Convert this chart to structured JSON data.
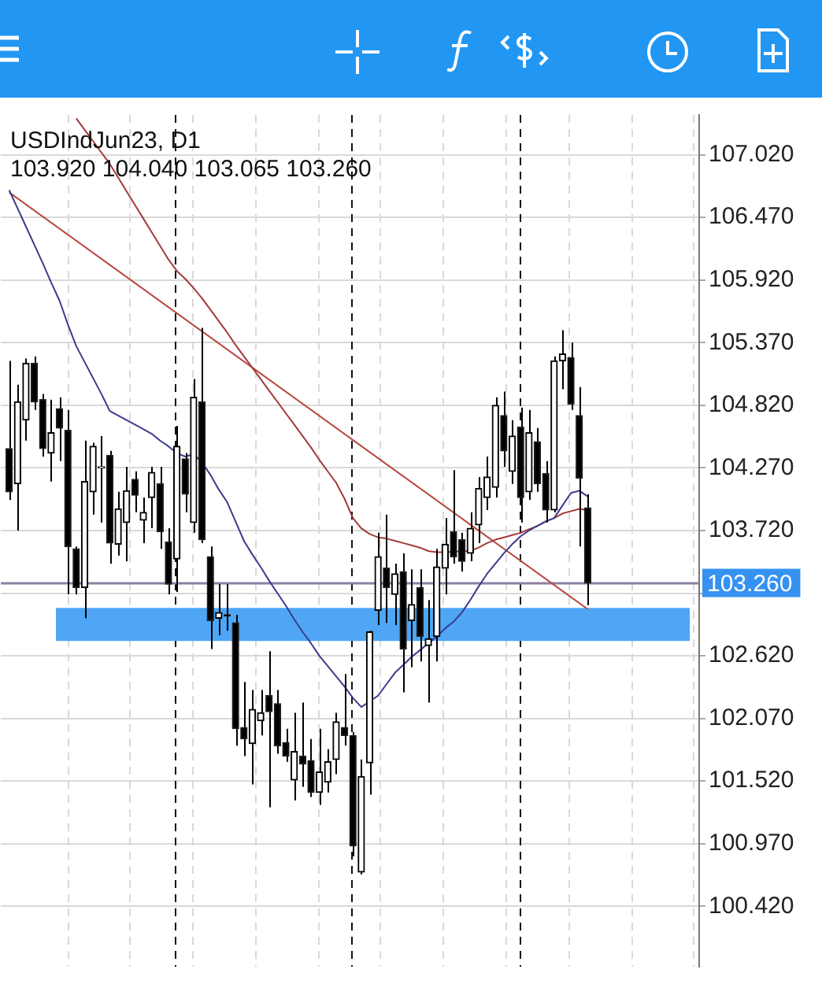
{
  "chart_data": {
    "type": "candlestick",
    "title": "USDIndJun23, D1",
    "subtitle": "103.920 104.040 103.065 103.260",
    "categories": [
      null,
      null,
      null,
      null,
      null,
      null,
      null,
      null,
      null,
      null,
      null,
      null,
      null,
      null,
      null,
      null,
      null,
      null,
      null,
      null,
      null,
      null,
      null,
      null,
      null,
      null,
      null,
      null,
      null,
      null,
      null,
      null,
      null,
      null,
      null,
      null,
      null,
      null,
      null,
      null,
      null,
      null,
      null,
      null,
      null,
      null,
      null,
      null,
      null,
      null,
      null,
      null,
      null,
      null,
      null,
      null,
      null,
      null,
      null,
      null,
      null,
      null,
      null,
      null,
      null,
      null,
      null,
      null,
      null,
      null
    ],
    "ohlc": [
      [
        104.44,
        105.21,
        103.99,
        104.06
      ],
      [
        104.13,
        105.0,
        103.72,
        104.85
      ],
      [
        104.69,
        105.23,
        104.51,
        105.19
      ],
      [
        105.19,
        105.25,
        104.78,
        104.85
      ],
      [
        104.87,
        104.92,
        104.37,
        104.44
      ],
      [
        104.4,
        104.87,
        104.15,
        104.58
      ],
      [
        104.79,
        104.89,
        104.33,
        104.62
      ],
      [
        104.6,
        104.78,
        103.16,
        103.58
      ],
      [
        103.56,
        103.58,
        103.16,
        103.22
      ],
      [
        103.22,
        104.51,
        102.95,
        104.15
      ],
      [
        104.06,
        104.49,
        103.86,
        104.46
      ],
      [
        104.27,
        104.55,
        103.79,
        104.28
      ],
      [
        104.38,
        104.42,
        103.43,
        103.61
      ],
      [
        103.6,
        104.06,
        103.5,
        103.91
      ],
      [
        103.79,
        104.28,
        103.45,
        104.07
      ],
      [
        104.17,
        104.24,
        103.88,
        104.03
      ],
      [
        103.81,
        104.01,
        103.61,
        103.88
      ],
      [
        104.01,
        104.28,
        103.74,
        104.23
      ],
      [
        104.13,
        104.28,
        103.56,
        103.71
      ],
      [
        103.62,
        103.74,
        103.16,
        103.25
      ],
      [
        103.47,
        104.64,
        103.18,
        104.46
      ],
      [
        104.35,
        104.4,
        103.88,
        104.04
      ],
      [
        103.79,
        105.05,
        103.7,
        104.89
      ],
      [
        104.85,
        105.5,
        103.61,
        103.64
      ],
      [
        103.49,
        103.58,
        102.68,
        102.93
      ],
      [
        102.95,
        103.25,
        102.8,
        103.0
      ],
      [
        102.98,
        103.25,
        102.84,
        102.97
      ],
      [
        102.91,
        102.98,
        101.83,
        101.98
      ],
      [
        101.99,
        102.39,
        101.74,
        101.89
      ],
      [
        101.85,
        102.32,
        101.49,
        102.15
      ],
      [
        102.05,
        102.32,
        101.92,
        102.12
      ],
      [
        102.27,
        102.66,
        101.29,
        102.13
      ],
      [
        102.2,
        102.32,
        101.76,
        101.83
      ],
      [
        101.86,
        101.98,
        101.69,
        101.74
      ],
      [
        101.53,
        102.12,
        101.35,
        101.78
      ],
      [
        101.74,
        102.21,
        101.47,
        101.67
      ],
      [
        101.7,
        101.89,
        101.38,
        101.42
      ],
      [
        101.42,
        101.98,
        101.31,
        101.6
      ],
      [
        101.51,
        101.8,
        101.42,
        101.69
      ],
      [
        101.71,
        102.12,
        101.58,
        102.04
      ],
      [
        101.99,
        102.46,
        101.83,
        101.92
      ],
      [
        101.92,
        101.95,
        100.86,
        100.95
      ],
      [
        100.72,
        101.71,
        100.7,
        101.56
      ],
      [
        101.68,
        102.84,
        101.4,
        102.83
      ],
      [
        103.02,
        103.7,
        102.89,
        103.49
      ],
      [
        103.39,
        103.86,
        102.91,
        103.22
      ],
      [
        103.16,
        103.43,
        102.89,
        103.34
      ],
      [
        103.36,
        103.52,
        102.3,
        102.68
      ],
      [
        102.93,
        103.38,
        102.52,
        103.07
      ],
      [
        103.22,
        103.38,
        102.57,
        102.79
      ],
      [
        102.71,
        103.11,
        102.21,
        102.77
      ],
      [
        102.79,
        103.56,
        102.57,
        103.4
      ],
      [
        103.39,
        103.83,
        103.16,
        103.6
      ],
      [
        103.71,
        104.25,
        103.43,
        103.49
      ],
      [
        103.64,
        103.7,
        103.36,
        103.45
      ],
      [
        103.52,
        103.88,
        103.45,
        103.74
      ],
      [
        103.77,
        104.19,
        103.61,
        104.09
      ],
      [
        104.01,
        104.37,
        103.9,
        104.19
      ],
      [
        104.1,
        104.89,
        104.01,
        104.82
      ],
      [
        104.73,
        104.94,
        104.28,
        104.42
      ],
      [
        104.24,
        104.69,
        104.13,
        104.55
      ],
      [
        104.63,
        104.8,
        103.79,
        104.01
      ],
      [
        104.06,
        104.78,
        103.99,
        104.58
      ],
      [
        104.5,
        104.62,
        104.06,
        104.13
      ],
      [
        104.22,
        104.33,
        103.79,
        103.9
      ],
      [
        103.9,
        105.25,
        103.88,
        105.21
      ],
      [
        105.21,
        105.48,
        104.96,
        105.27
      ],
      [
        105.24,
        105.37,
        104.78,
        104.83
      ],
      [
        104.73,
        104.98,
        103.58,
        104.18
      ],
      [
        103.92,
        104.04,
        103.065,
        103.26
      ]
    ],
    "series": [
      {
        "type": "line",
        "color": "#3b3b8f",
        "values": [
          106.71,
          106.55,
          106.39,
          106.23,
          106.07,
          105.9,
          105.74,
          105.53,
          105.34,
          105.2,
          105.06,
          104.92,
          104.77,
          104.73,
          104.69,
          104.65,
          104.61,
          104.57,
          104.51,
          104.46,
          104.4,
          104.37,
          104.39,
          104.32,
          104.21,
          104.08,
          103.97,
          103.8,
          103.63,
          103.51,
          103.4,
          103.28,
          103.17,
          103.06,
          102.94,
          102.83,
          102.73,
          102.62,
          102.53,
          102.44,
          102.35,
          102.25,
          102.17,
          102.22,
          102.27,
          102.37,
          102.47,
          102.54,
          102.61,
          102.67,
          102.73,
          102.79,
          102.86,
          102.92,
          103.0,
          103.11,
          103.23,
          103.34,
          103.43,
          103.52,
          103.6,
          103.67,
          103.72,
          103.76,
          103.8,
          103.83,
          103.94,
          104.05,
          104.07,
          104.02
        ]
      },
      {
        "type": "line",
        "color": "#a33a3a",
        "values": [
          null,
          null,
          null,
          null,
          null,
          null,
          null,
          null,
          107.34,
          107.24,
          107.14,
          107.04,
          106.94,
          106.82,
          106.7,
          106.58,
          106.46,
          106.34,
          106.22,
          106.1,
          106.0,
          105.93,
          105.85,
          105.76,
          105.66,
          105.56,
          105.46,
          105.35,
          105.25,
          105.15,
          105.05,
          104.95,
          104.85,
          104.75,
          104.65,
          104.55,
          104.45,
          104.34,
          104.24,
          104.14,
          104.0,
          103.83,
          103.74,
          103.69,
          103.66,
          103.65,
          103.63,
          103.61,
          103.59,
          103.57,
          103.54,
          103.53,
          103.53,
          null,
          103.54,
          103.54,
          103.57,
          103.61,
          103.64,
          103.66,
          103.68,
          103.7,
          103.73,
          103.76,
          103.8,
          103.83,
          103.87,
          103.89,
          103.91,
          103.9
        ]
      },
      {
        "type": "line",
        "color": "#b8463f",
        "values": [
          106.69,
          null,
          null,
          null,
          null,
          null,
          null,
          null,
          null,
          null,
          null,
          null,
          null,
          null,
          null,
          null,
          null,
          null,
          null,
          null,
          null,
          null,
          null,
          null,
          null,
          null,
          null,
          null,
          null,
          null,
          null,
          null,
          null,
          null,
          null,
          null,
          null,
          null,
          null,
          null,
          null,
          null,
          null,
          null,
          null,
          null,
          null,
          null,
          null,
          null,
          null,
          null,
          null,
          null,
          null,
          null,
          null,
          null,
          null,
          null,
          null,
          null,
          null,
          null,
          null,
          null,
          null,
          null,
          null,
          103.03
        ]
      }
    ],
    "ylim": [
      99.89,
      107.37
    ],
    "yticks": [
      {
        "value": 107.02,
        "label": "107.020"
      },
      {
        "value": 106.47,
        "label": "106.470"
      },
      {
        "value": 105.92,
        "label": "105.920"
      },
      {
        "value": 105.37,
        "label": "105.370"
      },
      {
        "value": 104.82,
        "label": "104.820"
      },
      {
        "value": 104.27,
        "label": "104.270"
      },
      {
        "value": 103.72,
        "label": "103.720"
      },
      {
        "value": 103.17,
        "label": null
      },
      {
        "value": 102.62,
        "label": "102.620"
      },
      {
        "value": 102.07,
        "label": "102.070"
      },
      {
        "value": 101.52,
        "label": "101.520"
      },
      {
        "value": 100.97,
        "label": "100.970"
      },
      {
        "value": 100.42,
        "label": "100.420"
      }
    ],
    "tick_labels": "y",
    "grid": true,
    "ref_lines": [
      {
        "axis": "y",
        "value": 103.26,
        "label": "103.260",
        "color": "#8c7fa3"
      }
    ],
    "bands": [
      {
        "axis": "y",
        "from": 102.75,
        "to": 103.04,
        "color": "#4ea6f4"
      }
    ]
  }
}
